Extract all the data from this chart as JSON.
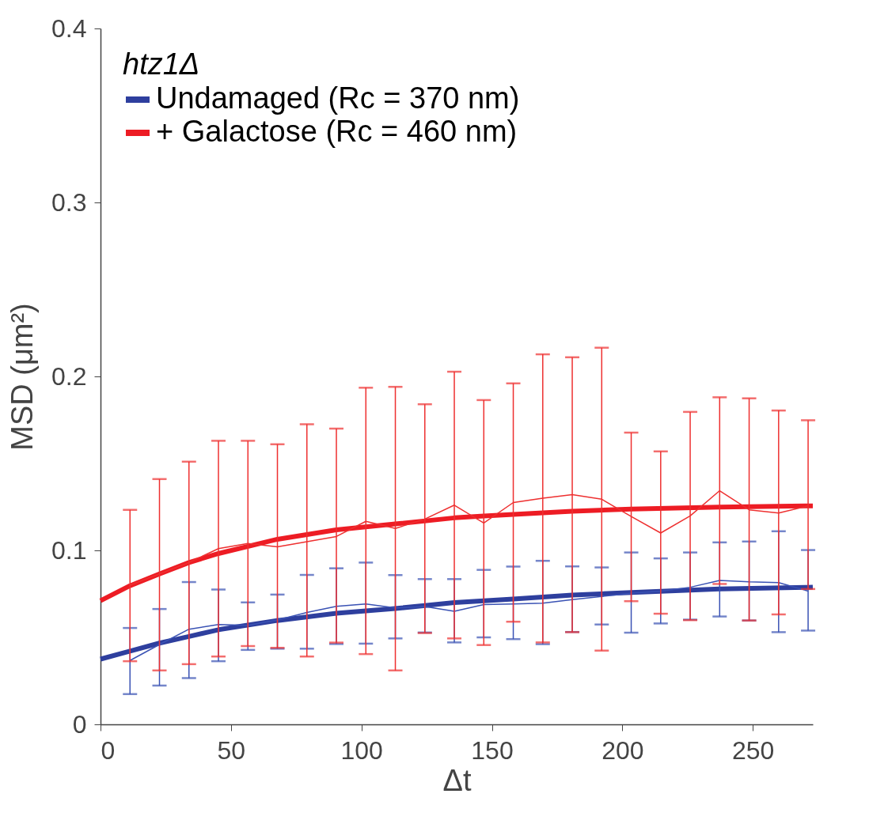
{
  "chart_data": {
    "type": "line",
    "xlabel": "Δt",
    "ylabel": "MSD (μm²)",
    "legend_title": "htz1Δ",
    "legend": "top left",
    "marker": "none",
    "line_style": "solid",
    "grid": false,
    "xlim": [
      0,
      273
    ],
    "ylim": [
      0,
      0.4
    ],
    "xticks": [
      0,
      50,
      100,
      150,
      200,
      250
    ],
    "yticks": [
      0,
      0.1,
      0.2,
      0.3,
      0.4
    ],
    "series": [
      {
        "name": "Undamaged  (Rc = 370 nm)",
        "color": "#2e3f9e",
        "x": [
          0,
          11.3,
          22.6,
          33.9,
          45.2,
          67.8,
          90.4,
          113,
          135.6,
          158.2,
          180.8,
          203.4,
          237.3,
          271.2,
          273
        ],
        "values": [
          0.0375,
          0.0421,
          0.0467,
          0.0505,
          0.0544,
          0.0597,
          0.0639,
          0.0666,
          0.07,
          0.072,
          0.0743,
          0.0758,
          0.0778,
          0.0788,
          0.0789
        ]
      },
      {
        "name": "+ Galactose  (Rc = 460 nm)",
        "color": "#ed1c24",
        "x": [
          0,
          11.3,
          22.6,
          33.9,
          45.2,
          67.8,
          90.4,
          113,
          135.6,
          147,
          180.8,
          203.4,
          237.3,
          271.2,
          273
        ],
        "values": [
          0.0711,
          0.0797,
          0.0865,
          0.093,
          0.0982,
          0.1064,
          0.1118,
          0.1152,
          0.1187,
          0.1198,
          0.1225,
          0.1238,
          0.1249,
          0.1256,
          0.1256
        ]
      },
      {
        "color": "#3a52b4",
        "x": [
          11.3,
          22.6,
          33.9,
          45.2,
          56.5,
          67.8,
          79.1,
          90.4,
          101.7,
          113,
          124.3,
          135.6,
          146.9,
          158.2,
          169.5,
          180.8,
          192.1,
          203.4,
          214.7,
          226,
          237.3,
          248.6,
          259.9,
          271.2
        ],
        "values": [
          0.0367,
          0.0459,
          0.0547,
          0.0574,
          0.0569,
          0.06,
          0.0643,
          0.0678,
          0.0692,
          0.0669,
          0.0677,
          0.065,
          0.0689,
          0.0692,
          0.0697,
          0.0717,
          0.0735,
          0.0753,
          0.0766,
          0.0788,
          0.0827,
          0.0819,
          0.0815,
          0.0766
        ],
        "errors": [
          [
            0.0174,
            0.0554
          ],
          [
            0.0223,
            0.0663
          ],
          [
            0.0266,
            0.0818
          ],
          [
            0.0363,
            0.0775
          ],
          [
            0.0428,
            0.0701
          ],
          [
            0.0435,
            0.0746
          ],
          [
            0.0435,
            0.0859
          ],
          [
            0.0462,
            0.0897
          ],
          [
            0.0464,
            0.093
          ],
          [
            0.0494,
            0.0858
          ],
          [
            0.0528,
            0.0835
          ],
          [
            0.0471,
            0.0835
          ],
          [
            0.05,
            0.0888
          ],
          [
            0.049,
            0.0907
          ],
          [
            0.0461,
            0.094
          ],
          [
            0.0531,
            0.0908
          ],
          [
            0.0574,
            0.0902
          ],
          [
            0.0527,
            0.0988
          ],
          [
            0.058,
            0.0954
          ],
          [
            0.0602,
            0.0988
          ],
          [
            0.062,
            0.1046
          ],
          [
            0.0597,
            0.1051
          ],
          [
            0.053,
            0.111
          ],
          [
            0.0539,
            0.1002
          ]
        ]
      },
      {
        "color": "#ee3030",
        "x": [
          11.3,
          22.6,
          33.9,
          45.2,
          56.5,
          67.8,
          79.1,
          90.4,
          101.7,
          113,
          124.3,
          135.6,
          146.9,
          158.2,
          169.5,
          180.8,
          192.1,
          203.4,
          214.7,
          226,
          237.3,
          248.6,
          259.9,
          271.2
        ],
        "values": [
          0.08,
          0.0865,
          0.093,
          0.101,
          0.104,
          0.102,
          0.105,
          0.108,
          0.1167,
          0.1126,
          0.118,
          0.126,
          0.1157,
          0.1275,
          0.13,
          0.132,
          0.1294,
          0.1195,
          0.11,
          0.1198,
          0.1343,
          0.1233,
          0.1215,
          0.1256
        ],
        "errors": [
          [
            0.0363,
            0.1233
          ],
          [
            0.031,
            0.141
          ],
          [
            0.0346,
            0.151
          ],
          [
            0.039,
            0.163
          ],
          [
            0.045,
            0.163
          ],
          [
            0.044,
            0.161
          ],
          [
            0.039,
            0.1725
          ],
          [
            0.047,
            0.17
          ],
          [
            0.0404,
            0.1935
          ],
          [
            0.031,
            0.194
          ],
          [
            0.0525,
            0.184
          ],
          [
            0.0494,
            0.2027
          ],
          [
            0.0456,
            0.1864
          ],
          [
            0.059,
            0.196
          ],
          [
            0.0471,
            0.2127
          ],
          [
            0.053,
            0.211
          ],
          [
            0.0424,
            0.2165
          ],
          [
            0.0708,
            0.1677
          ],
          [
            0.0636,
            0.1569
          ],
          [
            0.0599,
            0.1796
          ],
          [
            0.0807,
            0.188
          ],
          [
            0.0597,
            0.1874
          ],
          [
            0.0632,
            0.1804
          ],
          [
            0.0778,
            0.1748
          ]
        ]
      }
    ]
  }
}
